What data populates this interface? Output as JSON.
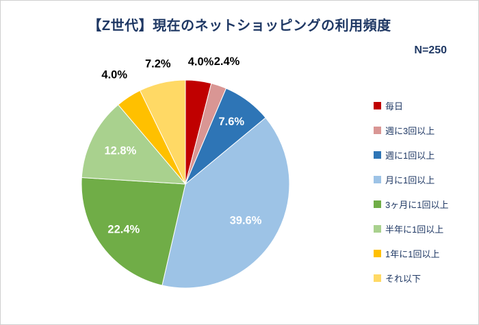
{
  "title": "【Z世代】現在のネットショッピングの利用頻度",
  "sample_size_label": "N=250",
  "colors": {
    "title_text": "#1F3864",
    "legend_text": "#1F3864",
    "background": "#FFFFFF",
    "slice_border": "#FFFFFF"
  },
  "chart_data": {
    "type": "pie",
    "title": "【Z世代】現在のネットショッピングの利用頻度",
    "sample_size": "N=250",
    "start_angle_deg": 0,
    "direction": "clockwise",
    "legend_position": "right",
    "slices": [
      {
        "label": "毎日",
        "value": 4.0,
        "display": "4.0%",
        "color": "#C00000",
        "label_placement": "outside",
        "label_color": "#000000",
        "label_radius_fraction": 1.18
      },
      {
        "label": "週に3回以上",
        "value": 2.4,
        "display": "2.4%",
        "color": "#D99694",
        "label_placement": "outside",
        "label_color": "#000000",
        "label_radius_fraction": 1.24
      },
      {
        "label": "週に1回以上",
        "value": 7.6,
        "display": "7.6%",
        "color": "#2E75B6",
        "label_placement": "inside",
        "label_color": "#FFFFFF",
        "label_radius_fraction": 0.74
      },
      {
        "label": "月に1回以上",
        "value": 39.6,
        "display": "39.6%",
        "color": "#9DC3E6",
        "label_placement": "inside",
        "label_color": "#FFFFFF",
        "label_radius_fraction": 0.68
      },
      {
        "label": "3ヶ月に1回以上",
        "value": 22.4,
        "display": "22.4%",
        "color": "#70AD47",
        "label_placement": "inside",
        "label_color": "#FFFFFF",
        "label_radius_fraction": 0.74
      },
      {
        "label": "半年に1回以上",
        "value": 12.8,
        "display": "12.8%",
        "color": "#A9D18E",
        "label_placement": "inside",
        "label_color": "#FFFFFF",
        "label_radius_fraction": 0.7
      },
      {
        "label": "1年に1回以上",
        "value": 4.0,
        "display": "4.0%",
        "color": "#FFC000",
        "label_placement": "outside",
        "label_color": "#000000",
        "label_radius_fraction": 1.25
      },
      {
        "label": "それ以下",
        "value": 7.2,
        "display": "7.2%",
        "color": "#FFD965",
        "label_placement": "outside",
        "label_color": "#000000",
        "label_radius_fraction": 1.18
      }
    ]
  }
}
